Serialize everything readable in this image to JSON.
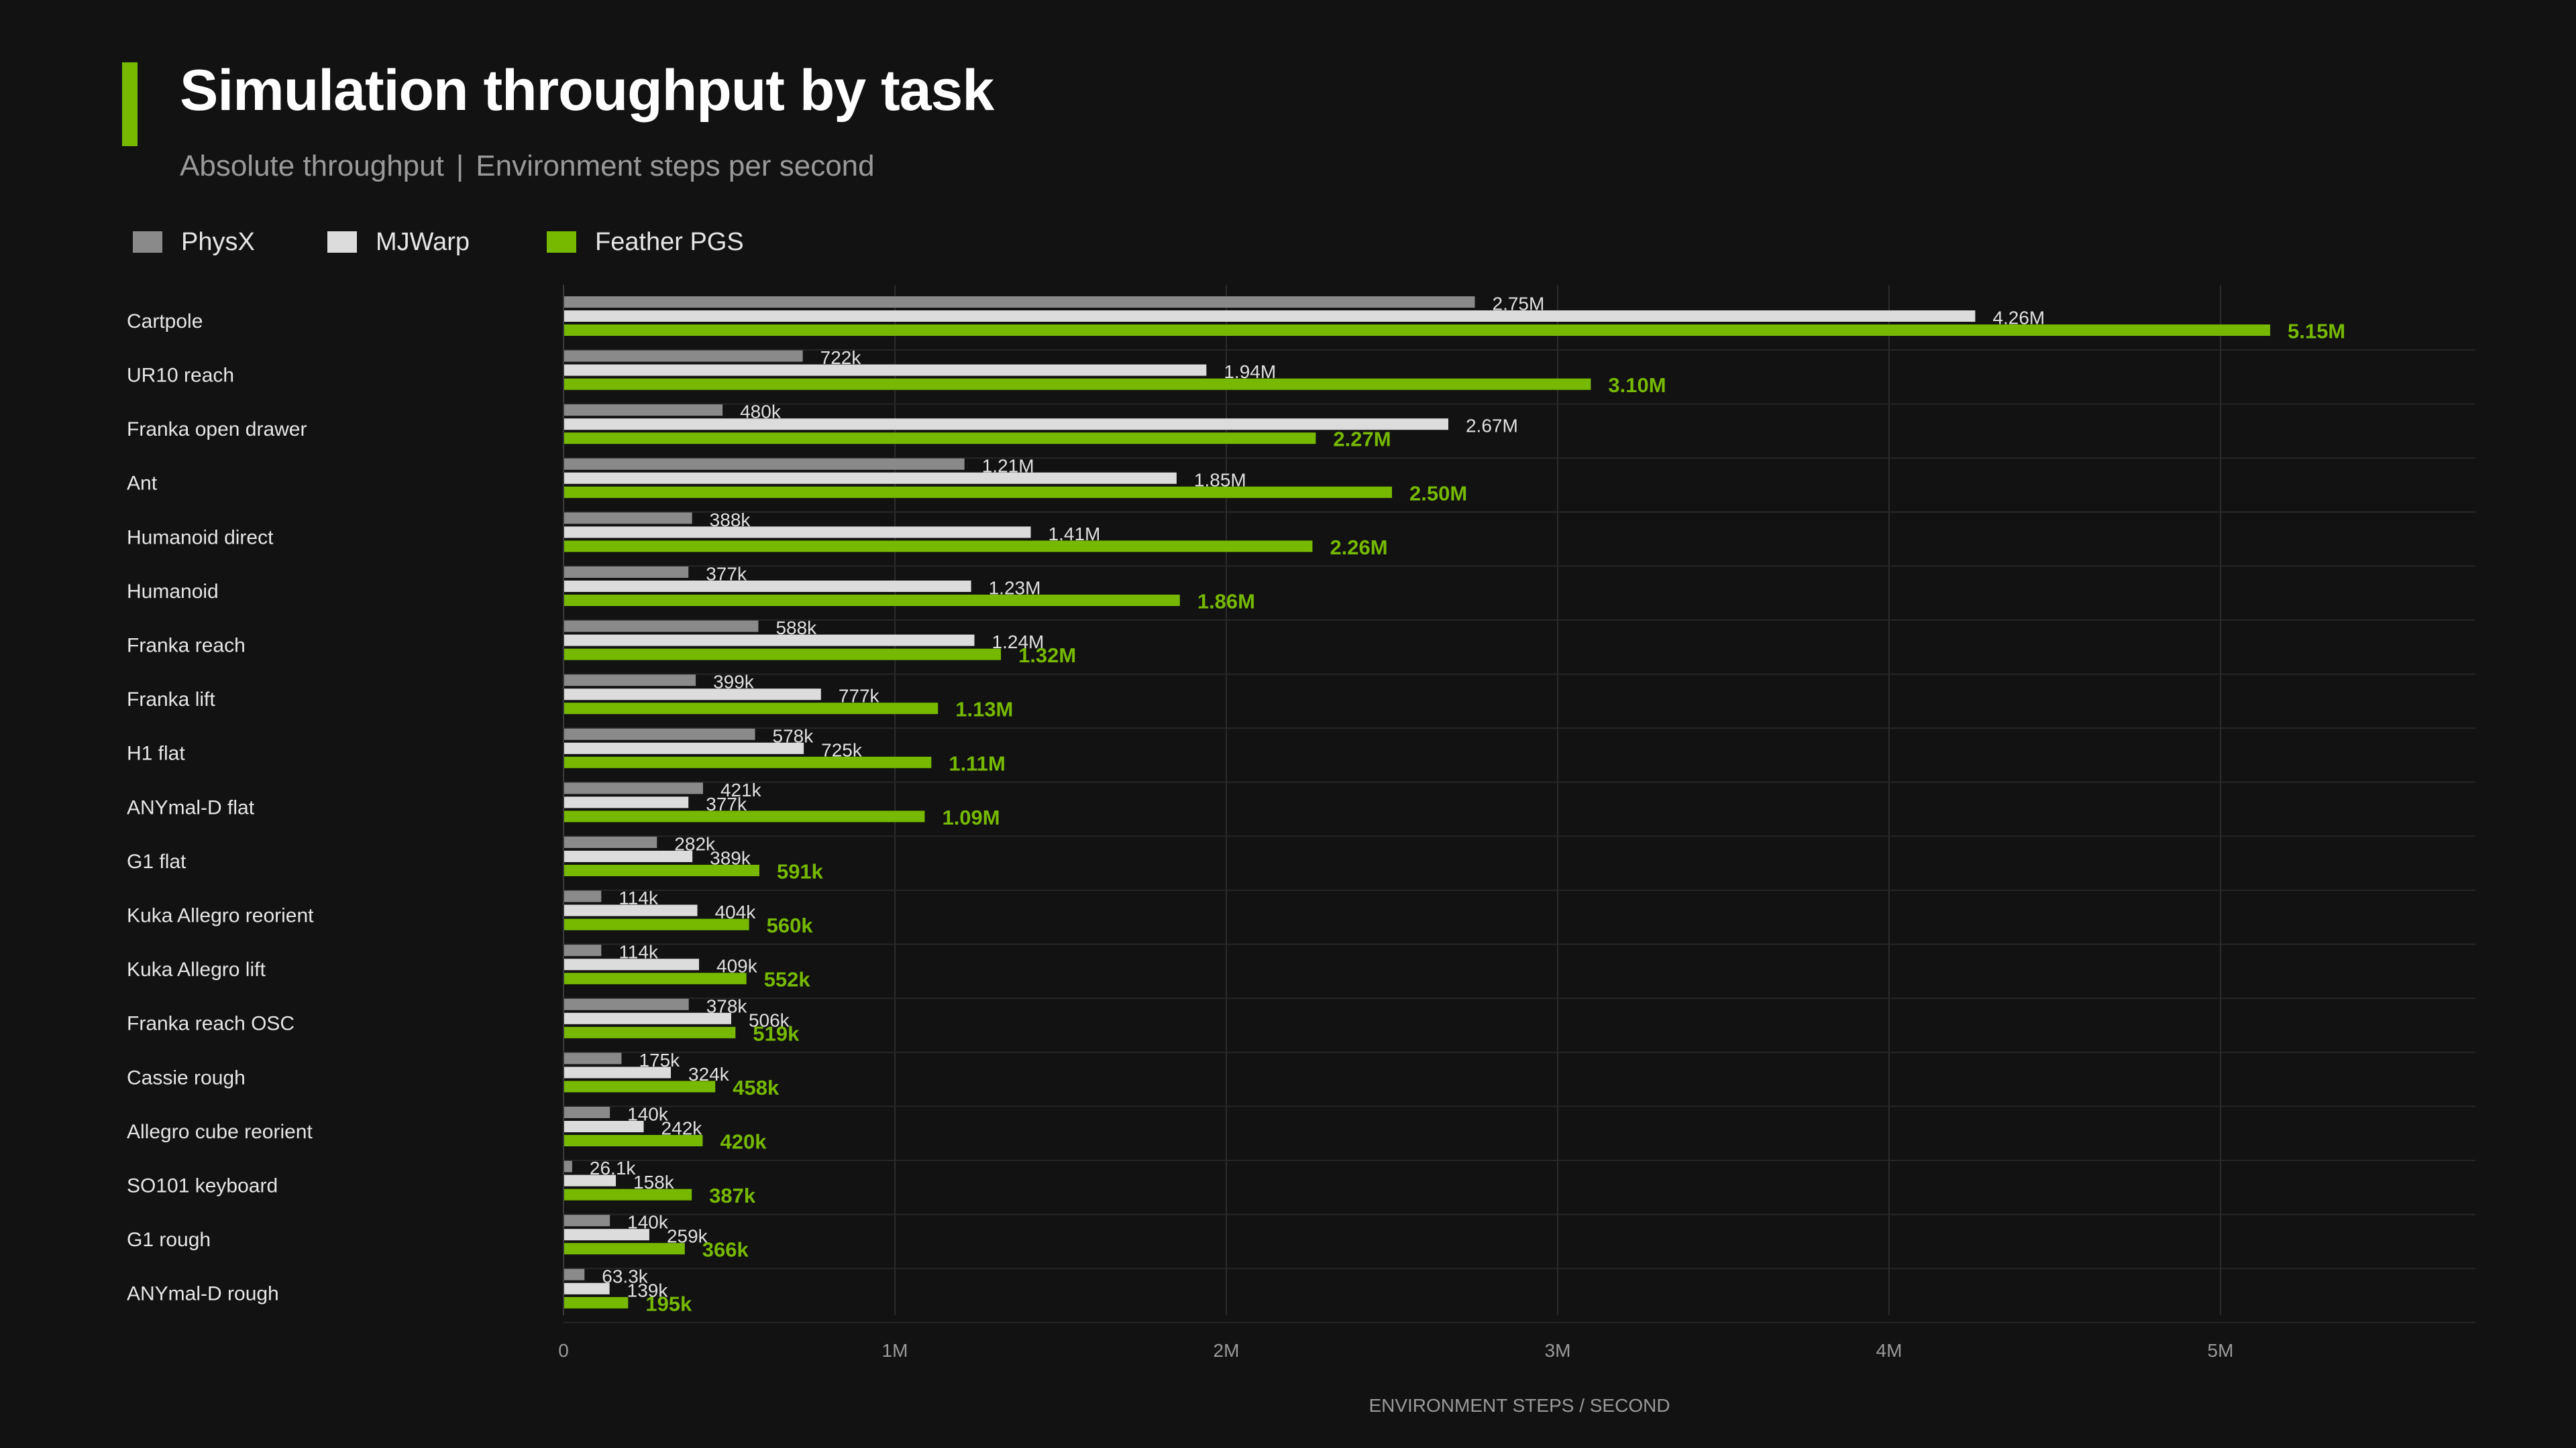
{
  "header": {
    "title": "Simulation throughput by task",
    "subtitle_left": "Absolute throughput",
    "subtitle_sep": "|",
    "subtitle_right": "Environment steps per second"
  },
  "colors": {
    "background": "#121212",
    "accent": "#76b900",
    "physx": "#8a8a8a",
    "mjwarp": "#dcdcdc",
    "feather": "#76b900",
    "grid": "#2c2c2c"
  },
  "legend": [
    {
      "name": "PhysX",
      "color": "#8a8a8a"
    },
    {
      "name": "MJWarp",
      "color": "#dcdcdc"
    },
    {
      "name": "Feather PGS",
      "color": "#76b900"
    }
  ],
  "chart_data": {
    "type": "bar",
    "orientation": "horizontal",
    "xlabel": "ENVIRONMENT STEPS / SECOND",
    "xlim": [
      0,
      5770000
    ],
    "xticks": [
      {
        "value": 0,
        "label": "0"
      },
      {
        "value": 1000000,
        "label": "1M"
      },
      {
        "value": 2000000,
        "label": "2M"
      },
      {
        "value": 3000000,
        "label": "3M"
      },
      {
        "value": 4000000,
        "label": "4M"
      },
      {
        "value": 5000000,
        "label": "5M"
      }
    ],
    "grid": true,
    "legend_position": "top-left",
    "categories": [
      "Cartpole",
      "UR10 reach",
      "Franka open drawer",
      "Ant",
      "Humanoid direct",
      "Humanoid",
      "Franka reach",
      "Franka lift",
      "H1 flat",
      "ANYmal-D flat",
      "G1 flat",
      "Kuka Allegro reorient",
      "Kuka Allegro lift",
      "Franka reach OSC",
      "Cassie rough",
      "Allegro cube reorient",
      "SO101 keyboard",
      "G1 rough",
      "ANYmal-D rough"
    ],
    "series": [
      {
        "name": "PhysX",
        "color": "#8a8a8a",
        "values": [
          2750000,
          722000,
          480000,
          1210000,
          388000,
          377000,
          588000,
          399000,
          578000,
          421000,
          282000,
          114000,
          114000,
          378000,
          175000,
          140000,
          26100,
          140000,
          63300
        ],
        "labels": [
          "2.75M",
          "722k",
          "480k",
          "1.21M",
          "388k",
          "377k",
          "588k",
          "399k",
          "578k",
          "421k",
          "282k",
          "114k",
          "114k",
          "378k",
          "175k",
          "140k",
          "26.1k",
          "140k",
          "63.3k"
        ]
      },
      {
        "name": "MJWarp",
        "color": "#dcdcdc",
        "values": [
          4260000,
          1940000,
          2670000,
          1850000,
          1410000,
          1230000,
          1240000,
          777000,
          725000,
          377000,
          389000,
          404000,
          409000,
          506000,
          324000,
          242000,
          158000,
          259000,
          139000
        ],
        "labels": [
          "4.26M",
          "1.94M",
          "2.67M",
          "1.85M",
          "1.41M",
          "1.23M",
          "1.24M",
          "777k",
          "725k",
          "377k",
          "389k",
          "404k",
          "409k",
          "506k",
          "324k",
          "242k",
          "158k",
          "259k",
          "139k"
        ]
      },
      {
        "name": "Feather PGS",
        "color": "#76b900",
        "values": [
          5150000,
          3100000,
          2270000,
          2500000,
          2260000,
          1860000,
          1320000,
          1130000,
          1110000,
          1090000,
          591000,
          560000,
          552000,
          519000,
          458000,
          420000,
          387000,
          366000,
          195000
        ],
        "labels": [
          "5.15M",
          "3.10M",
          "2.27M",
          "2.50M",
          "2.26M",
          "1.86M",
          "1.32M",
          "1.13M",
          "1.11M",
          "1.09M",
          "591k",
          "560k",
          "552k",
          "519k",
          "458k",
          "420k",
          "387k",
          "366k",
          "195k"
        ]
      }
    ]
  }
}
